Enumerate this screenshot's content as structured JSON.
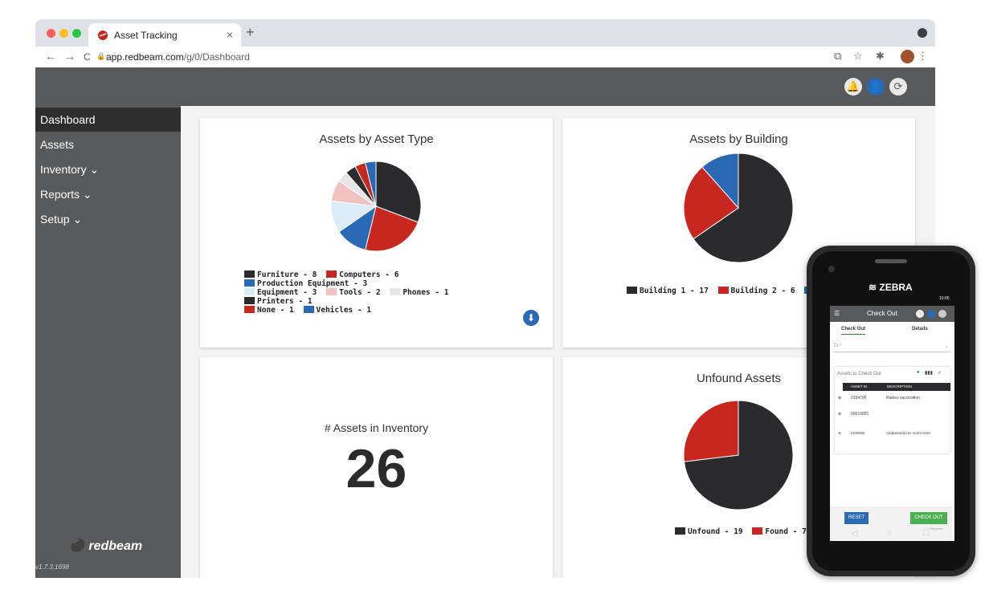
{
  "browser": {
    "tab_title": "Asset Tracking",
    "tab_close": "×",
    "new_tab": "+",
    "url_domain": "app.redbeam.com",
    "url_path": "/g/0/Dashboard",
    "back": "←",
    "forward": "→",
    "reload": "C",
    "lock": "🔒",
    "ext_icons": [
      "⧉",
      "☆",
      "✱",
      "⋮"
    ]
  },
  "sidebar": {
    "items": [
      {
        "label": "Dashboard"
      },
      {
        "label": "Assets"
      },
      {
        "label": "Inventory ⌄"
      },
      {
        "label": "Reports ⌄"
      },
      {
        "label": "Setup ⌄"
      }
    ],
    "logo": "redbeam",
    "version": "v1.7.3.1698"
  },
  "header": {
    "icons": [
      "bell-icon",
      "user-icon",
      "help-icon"
    ],
    "bell": "🔔",
    "user": "👤",
    "help": "⟳"
  },
  "cards": {
    "type": {
      "title": "Assets by Asset Type",
      "legend": [
        "Furniture - 8",
        "Computers - 6",
        "Production Equipment - 3",
        "Equipment - 3",
        "Tools - 2",
        "Phones - 1",
        "Printers - 1",
        "None - 1",
        "Vehicles - 1"
      ],
      "download": "⬇"
    },
    "building": {
      "title": "Assets by Building",
      "legend": [
        "Building 1 - 17",
        "Building 2 - 6",
        "Bu"
      ]
    },
    "inventory": {
      "title": "# Assets in Inventory",
      "count": "26"
    },
    "unfound": {
      "title": "Unfound Assets",
      "legend": [
        "Unfound - 19",
        "Found - 7"
      ]
    }
  },
  "colors": {
    "dark": "#2b2b2e",
    "red": "#c8271f",
    "blue": "#2a6ab5",
    "lightblue": "#d9ecf7",
    "pink": "#f2c2c0",
    "lightgray": "#e6e6e6"
  },
  "chart_data": [
    {
      "type": "pie",
      "title": "Assets by Asset Type",
      "categories": [
        "Furniture",
        "Computers",
        "Production Equipment",
        "Equipment",
        "Tools",
        "Phones",
        "Printers",
        "None",
        "Vehicles"
      ],
      "values": [
        8,
        6,
        3,
        3,
        2,
        1,
        1,
        1,
        1
      ],
      "colors": [
        "#2b2b2e",
        "#c8271f",
        "#2a6ab5",
        "#d9ecf7",
        "#f2c2c0",
        "#e6e6e6",
        "#2b2b2e",
        "#c8271f",
        "#2a6ab5"
      ],
      "legend": "bottom"
    },
    {
      "type": "pie",
      "title": "Assets by Building",
      "categories": [
        "Building 1",
        "Building 2",
        "Bu"
      ],
      "values": [
        17,
        6,
        3
      ],
      "colors": [
        "#2b2b2e",
        "#c8271f",
        "#2a6ab5"
      ],
      "legend": "bottom"
    },
    {
      "type": "pie",
      "title": "Unfound Assets",
      "categories": [
        "Unfound",
        "Found"
      ],
      "values": [
        19,
        7
      ],
      "colors": [
        "#2b2b2e",
        "#c8271f"
      ],
      "legend": "bottom"
    }
  ],
  "phone": {
    "brand": "ZEBRA",
    "time": "10:00",
    "title": "Check Out",
    "tabs": [
      "Check Out",
      "Details"
    ],
    "to_label": "To *",
    "assets_label": "Assets to Check Out",
    "col_id": "ASSET ID",
    "col_desc": "DESCRIPTION",
    "rows": [
      {
        "id": "0154795",
        "desc": "Rabies vaccination"
      },
      {
        "id": "00010001",
        "desc": ""
      },
      {
        "id": "0230568",
        "desc": "Abdperineal res rectm NOS"
      }
    ],
    "reset": "RESET",
    "checkout": "CHECK OUT",
    "required": "* = Required"
  }
}
